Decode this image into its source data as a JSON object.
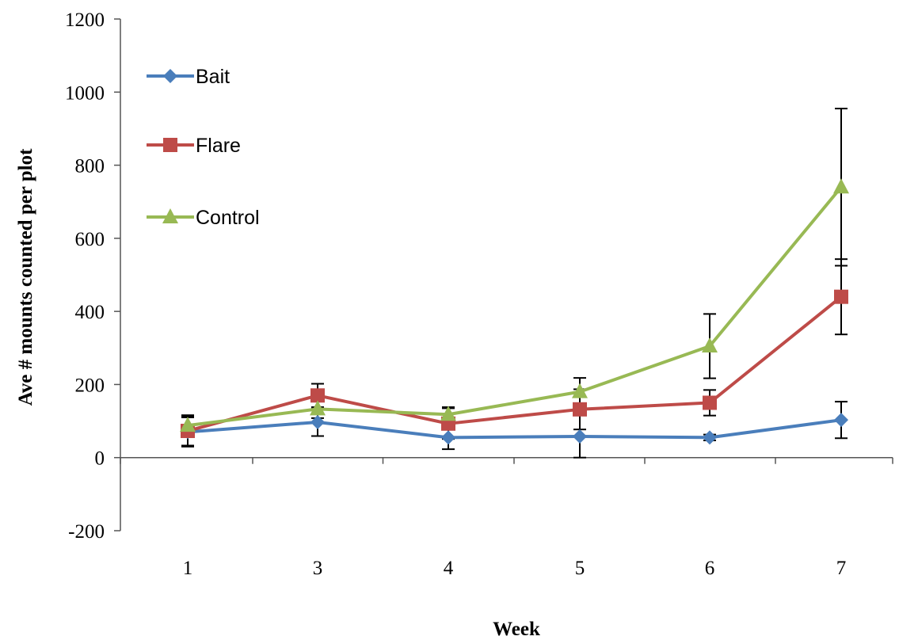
{
  "chart_data": {
    "type": "line",
    "title": "",
    "xlabel": "Week",
    "ylabel": "Ave # mounts counted per plot",
    "categories": [
      "1",
      "3",
      "4",
      "5",
      "6",
      "7"
    ],
    "ylim": [
      -200,
      1200
    ],
    "yticks": [
      "1200",
      "1000",
      "800",
      "600",
      "400",
      "200",
      "0",
      "-200"
    ],
    "grid": false,
    "legend_position": "top-left",
    "series": [
      {
        "name": "Bait",
        "color": "#4a7ebb",
        "marker": "diamond",
        "values": [
          70,
          97,
          55,
          58,
          55,
          103
        ],
        "error": [
          40,
          38,
          32,
          58,
          8,
          50
        ]
      },
      {
        "name": "Flare",
        "color": "#be4b48",
        "marker": "square",
        "values": [
          73,
          170,
          93,
          132,
          150,
          440
        ],
        "error": [
          40,
          32,
          42,
          55,
          35,
          103
        ]
      },
      {
        "name": "Control",
        "color": "#98b954",
        "marker": "triangle",
        "values": [
          88,
          133,
          118,
          180,
          305,
          740
        ],
        "error": [
          28,
          25,
          20,
          38,
          88,
          215
        ]
      }
    ]
  }
}
